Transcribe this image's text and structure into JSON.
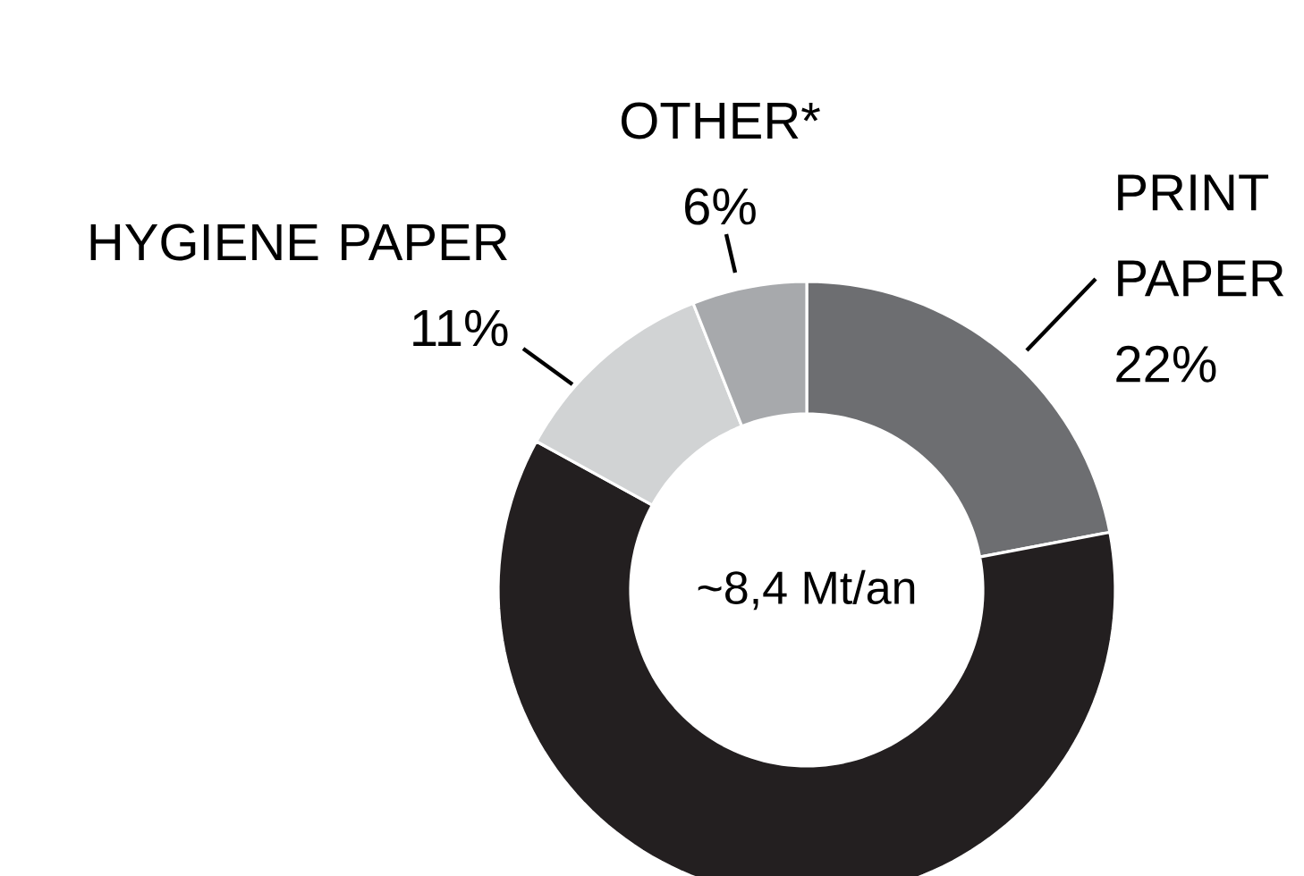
{
  "chart_data": {
    "type": "donut",
    "categories": [
      "PRINT PAPER",
      null,
      "HYGIENE PAPER",
      "OTHER*"
    ],
    "values": [
      22,
      61,
      11,
      6
    ],
    "colors": [
      "#6d6e71",
      "#231f20",
      "#d1d3d4",
      "#a7a9ac"
    ],
    "value_labels": [
      "22%",
      null,
      "11%",
      "6%"
    ],
    "annotations": [
      "~8,4 Mt/an"
    ]
  }
}
